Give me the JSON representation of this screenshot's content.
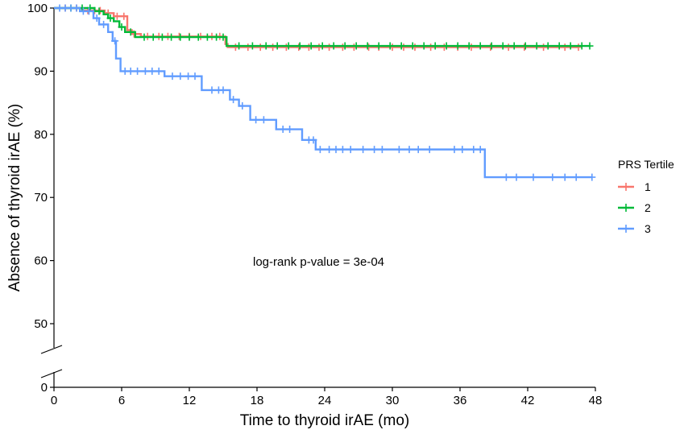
{
  "chart_data": {
    "type": "line",
    "subtype": "kaplan-meier",
    "xlabel": "Time to thyroid irAE (mo)",
    "ylabel": "Absence of thyroid irAE (%)",
    "xlim": [
      0,
      48
    ],
    "x_ticks": [
      0,
      6,
      12,
      18,
      24,
      30,
      36,
      42,
      48
    ],
    "y_ticks": [
      0,
      50,
      60,
      70,
      80,
      90,
      100
    ],
    "y_axis_break": [
      0,
      45
    ],
    "grid": false,
    "legend": {
      "title": "PRS Tertile",
      "position": "right",
      "entries": [
        "1",
        "2",
        "3"
      ]
    },
    "annotation": "log-rank p-value = 3e-04",
    "series": [
      {
        "name": "1",
        "color": "#F8766D",
        "steps": [
          [
            0,
            100
          ],
          [
            2.5,
            99.6
          ],
          [
            4.5,
            99.2
          ],
          [
            5.3,
            98.7
          ],
          [
            6.5,
            96.5
          ],
          [
            6.9,
            95.9
          ],
          [
            7.7,
            95.5
          ],
          [
            15.2,
            94.3
          ],
          [
            15.4,
            93.8
          ]
        ],
        "end": 46.5,
        "censor_times": [
          1.0,
          2.0,
          3.0,
          3.6,
          4.1,
          4.8,
          5.6,
          6.2,
          7.1,
          8.3,
          9.3,
          10.1,
          11.1,
          12.0,
          13.0,
          14.0,
          14.7,
          16.1,
          17.2,
          18.3,
          19.4,
          20.6,
          21.7,
          22.6,
          23.5,
          24.4,
          25.6,
          26.6,
          27.9,
          28.8,
          30.0,
          31.0,
          32.0,
          33.4,
          34.6,
          35.8,
          37.0,
          38.7,
          40.3,
          41.7,
          43.4,
          45.3,
          46.5
        ]
      },
      {
        "name": "2",
        "color": "#00BA38",
        "steps": [
          [
            0,
            100
          ],
          [
            3.6,
            99.5
          ],
          [
            4.4,
            99.0
          ],
          [
            4.8,
            98.4
          ],
          [
            5.3,
            97.9
          ],
          [
            5.8,
            97.0
          ],
          [
            6.3,
            96.2
          ],
          [
            7.2,
            95.4
          ],
          [
            15.3,
            94.0
          ]
        ],
        "end": 47.5,
        "censor_times": [
          1.5,
          2.5,
          3.2,
          4.0,
          5.0,
          6.0,
          6.8,
          8.0,
          8.8,
          9.6,
          10.4,
          11.2,
          12.0,
          12.8,
          13.6,
          14.4,
          15.0,
          16.4,
          17.6,
          18.8,
          19.8,
          20.8,
          21.8,
          22.8,
          23.8,
          24.8,
          25.8,
          26.8,
          27.8,
          28.8,
          29.8,
          30.8,
          31.8,
          32.8,
          33.8,
          34.8,
          35.8,
          36.8,
          37.8,
          38.8,
          39.8,
          40.8,
          41.8,
          42.8,
          43.8,
          44.8,
          45.8,
          46.8,
          47.5
        ]
      },
      {
        "name": "3",
        "color": "#619CFF",
        "steps": [
          [
            0,
            100
          ],
          [
            2.3,
            99.5
          ],
          [
            3.5,
            98.4
          ],
          [
            4.0,
            97.4
          ],
          [
            4.8,
            96.2
          ],
          [
            5.2,
            94.8
          ],
          [
            5.5,
            92.0
          ],
          [
            5.9,
            90.0
          ],
          [
            9.8,
            89.2
          ],
          [
            13.1,
            87.0
          ],
          [
            15.6,
            85.5
          ],
          [
            16.4,
            84.5
          ],
          [
            17.4,
            82.3
          ],
          [
            19.7,
            80.8
          ],
          [
            22.0,
            79.1
          ],
          [
            23.2,
            77.6
          ],
          [
            38.2,
            73.2
          ]
        ],
        "end": 47.7,
        "censor_times": [
          0.5,
          1.0,
          1.5,
          2.0,
          2.6,
          3.1,
          3.8,
          4.4,
          5.4,
          6.3,
          6.8,
          7.4,
          8.1,
          8.7,
          9.3,
          10.5,
          11.2,
          11.9,
          12.5,
          14.0,
          14.6,
          15.0,
          15.9,
          16.7,
          17.9,
          18.6,
          20.3,
          20.9,
          22.6,
          23.0,
          23.6,
          24.4,
          25.0,
          25.6,
          26.3,
          27.4,
          28.4,
          29.1,
          30.6,
          31.5,
          32.3,
          33.3,
          35.5,
          36.2,
          37.2,
          37.8,
          40.1,
          41.0,
          42.5,
          44.2,
          45.3,
          46.3,
          47.7
        ]
      }
    ]
  }
}
